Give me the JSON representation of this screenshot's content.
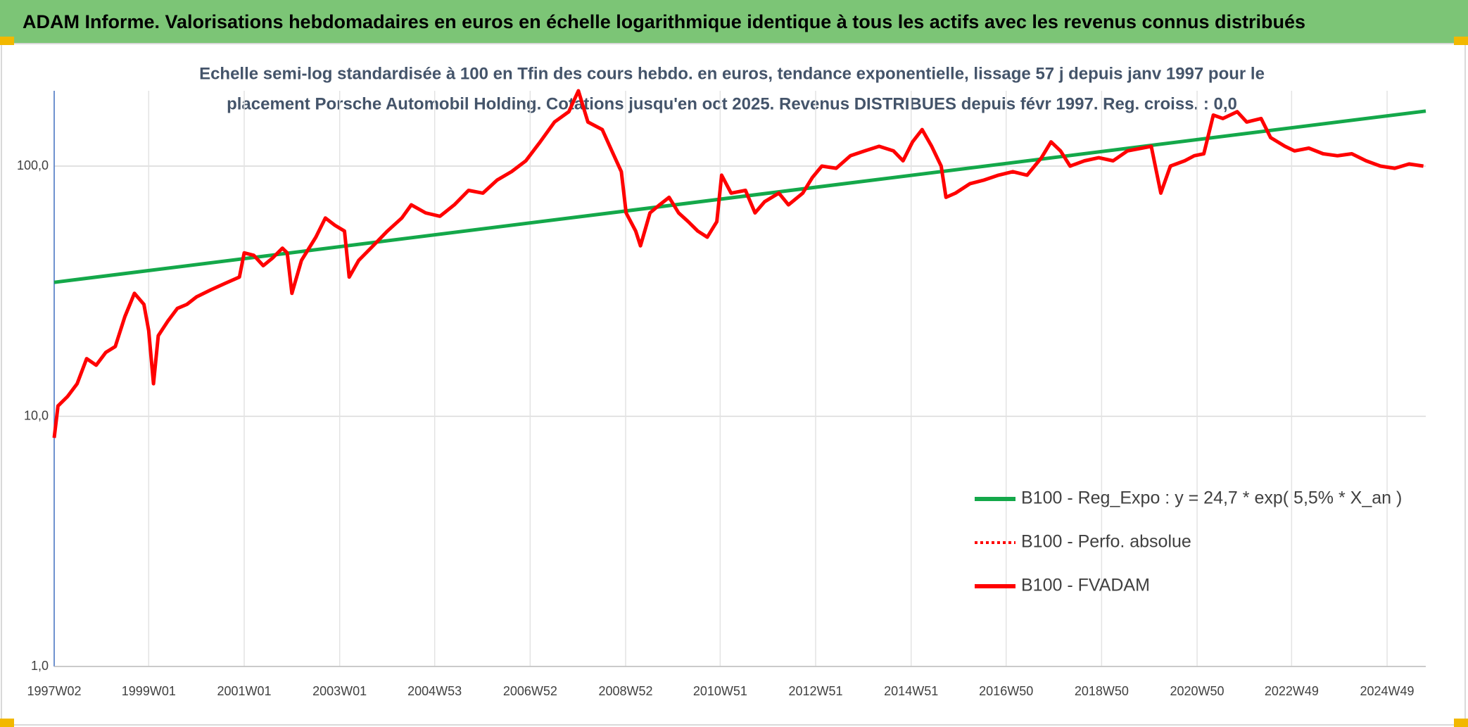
{
  "chart_data": {
    "type": "line",
    "title": "ADAM Informe. Valorisations hebdomadaires en euros en échelle logarithmique identique à tous les actifs avec les revenus connus distribués",
    "subtitle": [
      "Echelle semi-log standardisée à 100 en Tfin des cours hebdo. en euros, tendance exponentielle, lissage 57 j depuis janv 1997 pour le",
      "placement Porsche Automobil Holding. Cotations jusqu'en oct 2025. Revenus DISTRIBUES depuis févr 1997. Reg. croiss. : 0,0"
    ],
    "yscale": "log",
    "grid": true,
    "legend": "bottom-right",
    "ylim": [
      1,
      200
    ],
    "yticks": [
      {
        "value": 1,
        "label": "1,0"
      },
      {
        "value": 10,
        "label": "10,0"
      },
      {
        "value": 100,
        "label": "100,0"
      }
    ],
    "xlim": [
      1997.02,
      2025.75
    ],
    "xticks": [
      {
        "value": 1997.02,
        "label": "1997W02"
      },
      {
        "value": 1999.0,
        "label": "1999W01"
      },
      {
        "value": 2001.0,
        "label": "2001W01"
      },
      {
        "value": 2003.0,
        "label": "2003W01"
      },
      {
        "value": 2004.99,
        "label": "2004W53"
      },
      {
        "value": 2006.99,
        "label": "2006W52"
      },
      {
        "value": 2008.99,
        "label": "2008W52"
      },
      {
        "value": 2010.97,
        "label": "2010W51"
      },
      {
        "value": 2012.97,
        "label": "2012W51"
      },
      {
        "value": 2014.97,
        "label": "2014W51"
      },
      {
        "value": 2016.96,
        "label": "2016W50"
      },
      {
        "value": 2018.96,
        "label": "2018W50"
      },
      {
        "value": 2020.96,
        "label": "2020W50"
      },
      {
        "value": 2022.94,
        "label": "2022W49"
      },
      {
        "value": 2024.94,
        "label": "2024W49"
      }
    ],
    "x": [
      1997.02,
      1997.1,
      1997.3,
      1997.5,
      1997.7,
      1997.9,
      1998.1,
      1998.3,
      1998.5,
      1998.7,
      1998.9,
      1999.0,
      1999.1,
      1999.2,
      1999.4,
      1999.6,
      1999.8,
      2000.0,
      2000.3,
      2000.6,
      2000.9,
      2001.0,
      2001.2,
      2001.4,
      2001.6,
      2001.8,
      2001.9,
      2002.0,
      2002.2,
      2002.5,
      2002.7,
      2002.9,
      2003.1,
      2003.2,
      2003.4,
      2003.7,
      2004.0,
      2004.3,
      2004.5,
      2004.8,
      2005.1,
      2005.4,
      2005.7,
      2006.0,
      2006.3,
      2006.6,
      2006.9,
      2007.2,
      2007.5,
      2007.8,
      2008.0,
      2008.2,
      2008.5,
      2008.7,
      2008.9,
      2009.0,
      2009.2,
      2009.3,
      2009.5,
      2009.7,
      2009.9,
      2010.1,
      2010.3,
      2010.5,
      2010.7,
      2010.9,
      2011.0,
      2011.2,
      2011.5,
      2011.7,
      2011.9,
      2012.2,
      2012.4,
      2012.7,
      2012.9,
      2013.1,
      2013.4,
      2013.7,
      2014.0,
      2014.3,
      2014.6,
      2014.8,
      2015.0,
      2015.2,
      2015.4,
      2015.6,
      2015.7,
      2015.9,
      2016.2,
      2016.5,
      2016.8,
      2017.1,
      2017.4,
      2017.7,
      2017.9,
      2018.1,
      2018.3,
      2018.6,
      2018.9,
      2019.2,
      2019.5,
      2019.8,
      2020.0,
      2020.2,
      2020.4,
      2020.7,
      2020.9,
      2021.1,
      2021.3,
      2021.5,
      2021.8,
      2022.0,
      2022.3,
      2022.5,
      2022.8,
      2023.0,
      2023.3,
      2023.6,
      2023.9,
      2024.2,
      2024.5,
      2024.8,
      2025.1,
      2025.4,
      2025.7
    ],
    "series": [
      {
        "name": "B100 - Reg_Expo : y = 24,7 * exp( 5,5% *  X_an )",
        "color": "#14a84a",
        "style": "solid",
        "x": [
          1997.02,
          2025.75
        ],
        "values": [
          34.3,
          166
        ]
      },
      {
        "name": "B100 - Perfo. absolue",
        "color": "#ff0000",
        "style": "dotted",
        "values": [
          8.2,
          11,
          12,
          13.5,
          17,
          16,
          18,
          19,
          25,
          31,
          28,
          22,
          13.5,
          21,
          24,
          27,
          28,
          30,
          32,
          34,
          36,
          45,
          44,
          40,
          43,
          47,
          45,
          31,
          42,
          52,
          62,
          58,
          55,
          36,
          42,
          48,
          55,
          62,
          70,
          65,
          63,
          70,
          80,
          78,
          88,
          95,
          105,
          125,
          150,
          165,
          200,
          150,
          140,
          115,
          95,
          65,
          55,
          48,
          65,
          70,
          75,
          65,
          60,
          55,
          52,
          60,
          92,
          78,
          80,
          65,
          72,
          78,
          70,
          78,
          90,
          100,
          98,
          110,
          115,
          120,
          115,
          105,
          125,
          140,
          120,
          100,
          75,
          78,
          85,
          88,
          92,
          95,
          92,
          108,
          125,
          115,
          100,
          105,
          108,
          105,
          115,
          118,
          120,
          78,
          100,
          105,
          110,
          112,
          160,
          155,
          165,
          150,
          155,
          130,
          120,
          115,
          118,
          112,
          110,
          112,
          105,
          100,
          98,
          102,
          100
        ]
      },
      {
        "name": "B100 - FVADAM",
        "color": "#ff0000",
        "style": "solid",
        "values": [
          8.2,
          11,
          12,
          13.5,
          17,
          16,
          18,
          19,
          25,
          31,
          28,
          22,
          13.5,
          21,
          24,
          27,
          28,
          30,
          32,
          34,
          36,
          45,
          44,
          40,
          43,
          47,
          45,
          31,
          42,
          52,
          62,
          58,
          55,
          36,
          42,
          48,
          55,
          62,
          70,
          65,
          63,
          70,
          80,
          78,
          88,
          95,
          105,
          125,
          150,
          165,
          200,
          150,
          140,
          115,
          95,
          65,
          55,
          48,
          65,
          70,
          75,
          65,
          60,
          55,
          52,
          60,
          92,
          78,
          80,
          65,
          72,
          78,
          70,
          78,
          90,
          100,
          98,
          110,
          115,
          120,
          115,
          105,
          125,
          140,
          120,
          100,
          75,
          78,
          85,
          88,
          92,
          95,
          92,
          108,
          125,
          115,
          100,
          105,
          108,
          105,
          115,
          118,
          120,
          78,
          100,
          105,
          110,
          112,
          160,
          155,
          165,
          150,
          155,
          130,
          120,
          115,
          118,
          112,
          110,
          112,
          105,
          100,
          98,
          102,
          100
        ]
      }
    ]
  }
}
